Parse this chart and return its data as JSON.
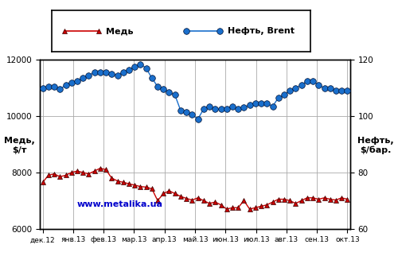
{
  "ylabel_left": "Медь,\n$/т",
  "ylabel_right": "Нефть,\n$/бар.",
  "xlabel_ticks": [
    "дек.12",
    "янв.13",
    "фев.13",
    "мар.13",
    "апр.13",
    "май.13",
    "июн.13",
    "июл.13",
    "авг.13",
    "сен.13",
    "окт.13"
  ],
  "ylim_left": [
    6000,
    12000
  ],
  "ylim_right": [
    60,
    120
  ],
  "yticks_left": [
    6000,
    8000,
    10000,
    12000
  ],
  "yticks_right": [
    60,
    80,
    100,
    120
  ],
  "copper_color": "#cc0000",
  "oil_color": "#1a6fcc",
  "copper_label": "Медь",
  "oil_label": "Нефть, Brent",
  "watermark": "www.metalika.ua",
  "watermark_color": "#0000cc",
  "background_color": "#ffffff",
  "grid_color": "#aaaaaa",
  "copper_data": [
    7650,
    7900,
    7950,
    7850,
    7900,
    8000,
    8050,
    8000,
    7950,
    8050,
    8150,
    8100,
    7800,
    7700,
    7650,
    7600,
    7550,
    7500,
    7480,
    7420,
    7000,
    7250,
    7350,
    7250,
    7150,
    7080,
    7020,
    7100,
    7000,
    6900,
    6950,
    6850,
    6700,
    6750,
    6750,
    7000,
    6700,
    6750,
    6800,
    6850,
    6950,
    7050,
    7050,
    7000,
    6900,
    7000,
    7100,
    7100,
    7050,
    7100,
    7050,
    7020,
    7100,
    7050
  ],
  "oil_data": [
    110.0,
    110.5,
    110.5,
    109.5,
    111.0,
    112.0,
    112.5,
    113.5,
    114.5,
    115.5,
    115.5,
    115.5,
    115.0,
    114.5,
    115.5,
    116.5,
    117.5,
    118.5,
    117.0,
    113.5,
    110.5,
    109.5,
    108.5,
    107.5,
    102.0,
    101.5,
    100.5,
    99.0,
    102.5,
    103.5,
    102.5,
    102.5,
    102.5,
    103.5,
    102.5,
    103.0,
    104.0,
    104.5,
    104.5,
    104.5,
    103.5,
    106.5,
    107.5,
    109.0,
    110.0,
    111.0,
    112.5,
    112.5,
    111.0,
    110.0,
    110.0,
    109.0,
    109.0,
    109.0
  ]
}
